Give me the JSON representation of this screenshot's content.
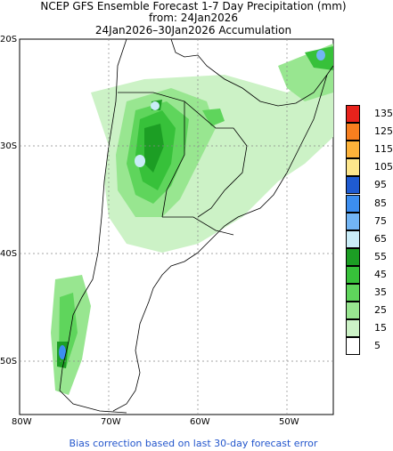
{
  "title": {
    "line1": "NCEP GFS Ensemble Forecast 1-7 Day Precipitation (mm)",
    "line2": "from: 24Jan2026",
    "line3": "24Jan2026–30Jan2026 Accumulation"
  },
  "axes": {
    "lat_labels": [
      "20S",
      "30S",
      "40S",
      "50S"
    ],
    "lon_labels": [
      "80W",
      "70W",
      "60W",
      "50W"
    ]
  },
  "legend": {
    "levels": [
      "135",
      "125",
      "115",
      "105",
      "95",
      "85",
      "75",
      "65",
      "55",
      "45",
      "35",
      "25",
      "15",
      "5"
    ],
    "colors": [
      "#e8231c",
      "#f77f1f",
      "#fdb33a",
      "#fde68c",
      "#1f5bd1",
      "#3c8ef0",
      "#72b5f5",
      "#c9ecf7",
      "#1c9e24",
      "#37c13a",
      "#5fd55c",
      "#98e690",
      "#ccf2c6",
      "#ffffff"
    ]
  },
  "footer": "Bias correction based on last 30-day forecast error",
  "colors": {
    "land": "#ffffff",
    "border": "#000000",
    "grid": "#888888",
    "label_blue": "#2255cc"
  }
}
